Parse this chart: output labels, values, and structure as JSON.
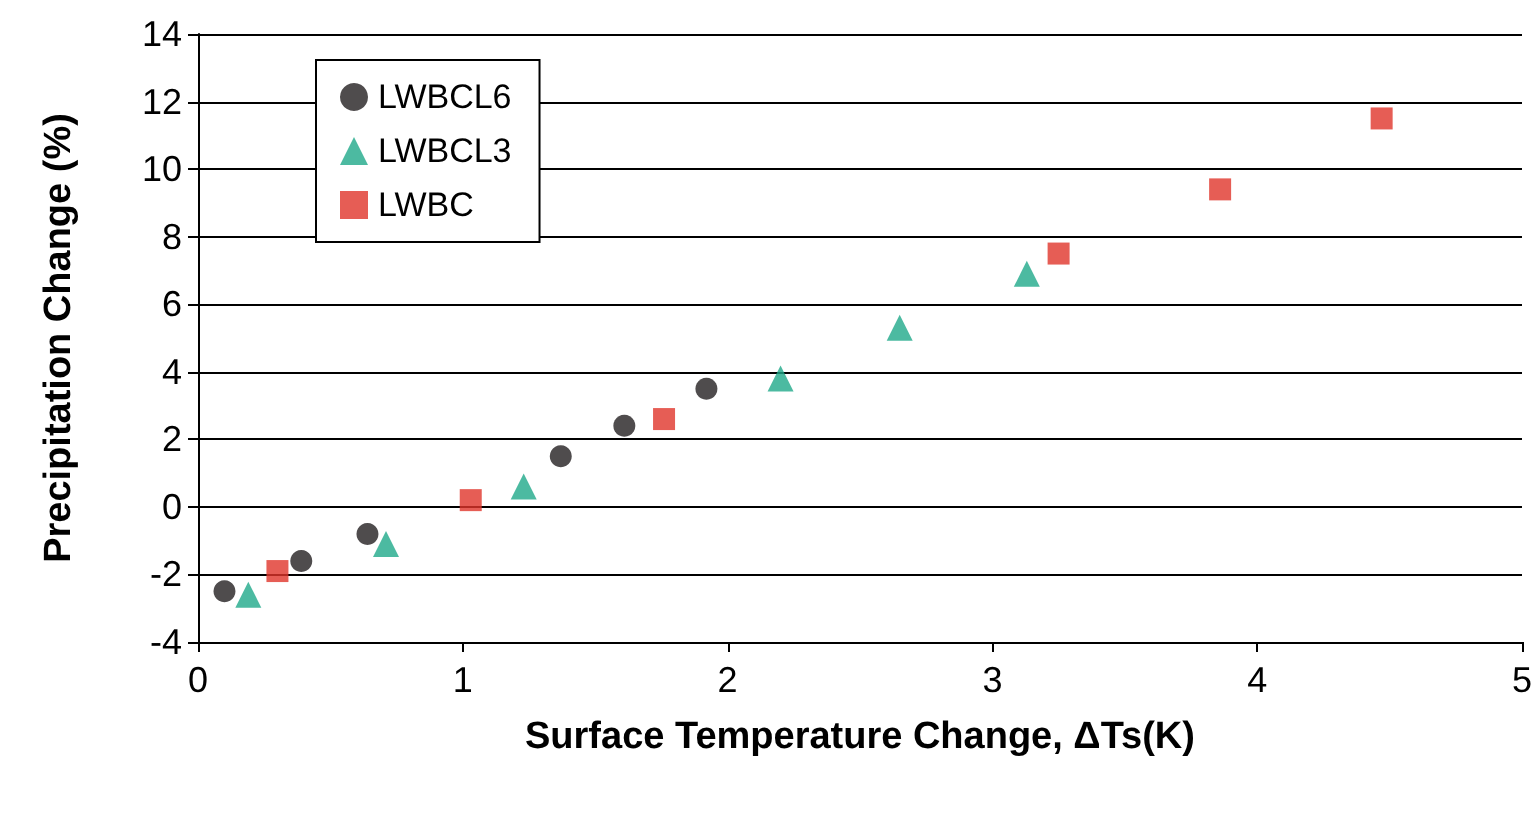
{
  "chart_data": {
    "type": "scatter",
    "xlabel": "Surface Temperature Change, ΔTs(K)",
    "ylabel": "Precipitation Change (%)",
    "xlim": [
      0,
      5
    ],
    "xticks": [
      0,
      1,
      2,
      3,
      4,
      5
    ],
    "ylim": [
      -4,
      14
    ],
    "yticks": [
      -4,
      -2,
      0,
      2,
      4,
      6,
      8,
      10,
      12,
      14
    ],
    "grid": "y",
    "legend": "top left",
    "series": [
      {
        "name": "LWBCL6",
        "color": "#231f20",
        "marker": "circle",
        "x": [
          0.1,
          0.39,
          0.64,
          1.37,
          1.61,
          1.92
        ],
        "values": [
          -2.5,
          -1.6,
          -0.8,
          1.5,
          2.4,
          3.5
        ]
      },
      {
        "name": "LWBCL3",
        "color": "#1fa98a",
        "marker": "triangle",
        "x": [
          0.19,
          0.71,
          1.23,
          2.2,
          2.65,
          3.13
        ],
        "values": [
          -2.6,
          -1.1,
          0.6,
          3.8,
          5.3,
          6.9
        ]
      },
      {
        "name": "LWBC",
        "color": "#e0342a",
        "marker": "square",
        "x": [
          0.3,
          1.03,
          1.76,
          3.25,
          3.86,
          4.47
        ],
        "values": [
          -1.9,
          0.2,
          2.6,
          7.5,
          9.4,
          11.5
        ]
      }
    ]
  }
}
